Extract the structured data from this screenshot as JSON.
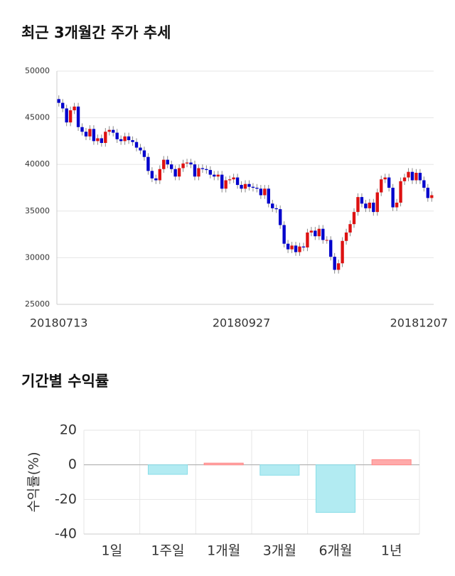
{
  "chart_data": [
    {
      "type": "candlestick",
      "title": "최근 3개월간 주가 추세",
      "categories": [
        "20180713",
        null,
        null,
        null,
        null,
        null,
        null,
        null,
        null,
        null,
        null,
        null,
        null,
        null,
        null,
        null,
        null,
        null,
        null,
        null,
        null,
        null,
        null,
        null,
        null,
        null,
        null,
        null,
        null,
        null,
        null,
        null,
        null,
        null,
        null,
        null,
        null,
        null,
        null,
        null,
        null,
        null,
        null,
        null,
        null,
        null,
        null,
        "20180927",
        null,
        null,
        null,
        null,
        null,
        null,
        null,
        null,
        null,
        null,
        null,
        null,
        null,
        null,
        null,
        null,
        null,
        null,
        null,
        null,
        null,
        null,
        null,
        null,
        null,
        null,
        null,
        null,
        null,
        null,
        null,
        null,
        null,
        null,
        null,
        null,
        null,
        null,
        null,
        null,
        null,
        null,
        null,
        null,
        null,
        null,
        null,
        null,
        "20181207"
      ],
      "open": [
        47000,
        46600,
        46000,
        44500,
        45800,
        46200,
        44000,
        43500,
        43000,
        43800,
        42500,
        42800,
        42300,
        43500,
        43700,
        43400,
        42700,
        42500,
        43000,
        42600,
        42400,
        41800,
        41500,
        40800,
        39300,
        38500,
        38300,
        39500,
        40500,
        40000,
        39500,
        38700,
        39600,
        40100,
        40200,
        40000,
        38700,
        39600,
        39500,
        39400,
        38900,
        38700,
        38900,
        37400,
        38300,
        38400,
        38600,
        37800,
        37400,
        37900,
        37600,
        37500,
        37400,
        36700,
        37400,
        35800,
        35300,
        35200,
        33500,
        31500,
        30900,
        31300,
        30600,
        31200,
        31100,
        32700,
        32900,
        32300,
        33100,
        31900,
        31900,
        30100,
        28700,
        29400,
        31800,
        32700,
        33600,
        34900,
        36500,
        35800,
        35300,
        35900,
        34900,
        37000,
        38400,
        38600,
        37500,
        35400,
        35900,
        38200,
        38600,
        39200,
        38300,
        39100,
        38300,
        37500,
        36400
      ],
      "high": [
        47400,
        47000,
        46400,
        46200,
        46600,
        46600,
        44400,
        43900,
        44200,
        44200,
        43200,
        43200,
        43900,
        44100,
        44100,
        43800,
        43100,
        43400,
        43400,
        43000,
        42800,
        42200,
        41900,
        41200,
        39700,
        38900,
        39900,
        40900,
        40900,
        40400,
        39900,
        40000,
        40500,
        40600,
        40600,
        40400,
        40000,
        40000,
        39900,
        39800,
        39300,
        39300,
        39300,
        38700,
        38800,
        39000,
        39000,
        38200,
        38300,
        38300,
        38000,
        37900,
        37800,
        37800,
        37800,
        36200,
        35700,
        35600,
        33900,
        31900,
        31700,
        31700,
        31600,
        31600,
        33100,
        33300,
        33300,
        33500,
        33500,
        32300,
        32300,
        30500,
        29800,
        32200,
        33100,
        34000,
        35300,
        36900,
        36900,
        36200,
        36300,
        36300,
        37400,
        38800,
        39000,
        39000,
        37900,
        36300,
        38600,
        39000,
        39600,
        39600,
        39500,
        39500,
        38700,
        37900,
        37100
      ],
      "low": [
        46200,
        45600,
        44100,
        44100,
        45400,
        43600,
        43100,
        42600,
        42600,
        42100,
        42100,
        41900,
        41900,
        43100,
        43000,
        42300,
        42100,
        42100,
        42200,
        42000,
        41400,
        41100,
        40400,
        38900,
        38100,
        37900,
        37900,
        39100,
        39600,
        39100,
        38300,
        38300,
        39200,
        39700,
        39600,
        38300,
        38300,
        39100,
        39000,
        38500,
        38300,
        38300,
        37000,
        37000,
        37900,
        38000,
        37400,
        37000,
        37000,
        37200,
        37100,
        37000,
        36300,
        36300,
        35400,
        34900,
        34800,
        33100,
        31100,
        30500,
        30500,
        30200,
        30200,
        30700,
        30700,
        32300,
        31900,
        31900,
        31500,
        31500,
        29700,
        28300,
        28300,
        29000,
        31400,
        32300,
        33200,
        34500,
        35400,
        34900,
        34900,
        34500,
        34500,
        36600,
        38000,
        37100,
        35000,
        35000,
        35500,
        37800,
        38200,
        37900,
        37900,
        37900,
        37100,
        36000,
        36000
      ],
      "close": [
        46600,
        46000,
        44500,
        45800,
        46200,
        44000,
        43500,
        43000,
        43800,
        42500,
        42800,
        42300,
        43500,
        43700,
        43400,
        42700,
        42500,
        43000,
        42600,
        42400,
        41800,
        41500,
        40800,
        39300,
        38500,
        38300,
        39500,
        40500,
        40000,
        39500,
        38700,
        39600,
        40100,
        40200,
        40000,
        38700,
        39600,
        39500,
        39400,
        38900,
        38700,
        38900,
        37400,
        38300,
        38400,
        38600,
        37800,
        37400,
        37900,
        37600,
        37500,
        37400,
        36700,
        37400,
        35800,
        35300,
        35200,
        33500,
        31500,
        30900,
        31300,
        30600,
        31200,
        31100,
        32700,
        32900,
        32300,
        33100,
        31900,
        31900,
        30100,
        28700,
        29400,
        31800,
        32700,
        33600,
        34900,
        36500,
        35800,
        35300,
        35900,
        34900,
        37000,
        38400,
        38600,
        37500,
        35400,
        35900,
        38200,
        38600,
        39200,
        38300,
        39100,
        38300,
        37500,
        36400,
        36700
      ],
      "up_color": "#dd1111",
      "down_color": "#0000cc",
      "ylim": [
        25000,
        50000
      ],
      "yticks": [
        25000,
        30000,
        35000,
        40000,
        45000,
        50000
      ],
      "grid": true
    },
    {
      "type": "bar",
      "title": "기간별 수익률",
      "y_label": "수익률(%)",
      "categories": [
        "1일",
        "1주일",
        "1개월",
        "3개월",
        "6개월",
        "1년"
      ],
      "values": [
        0,
        -5.5,
        1,
        -6,
        -27.5,
        3
      ],
      "positive_color": "#ffaaaa",
      "negative_color": "#b2ebf2",
      "ylim": [
        -40,
        20
      ],
      "yticks": [
        -40,
        -20,
        0,
        20
      ],
      "grid": true
    }
  ]
}
